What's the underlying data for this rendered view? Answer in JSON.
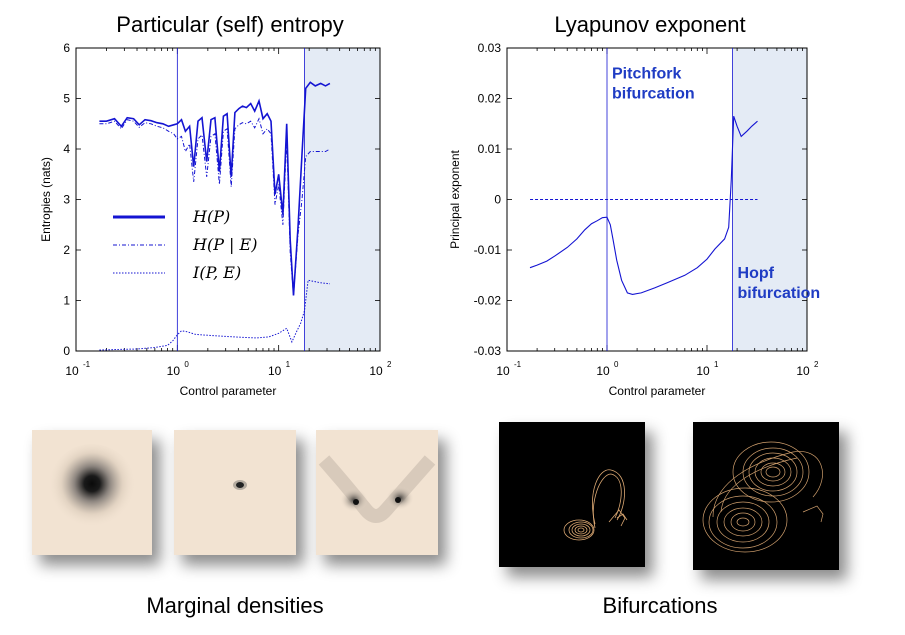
{
  "titles": {
    "left": "Particular (self) entropy",
    "right": "Lyapunov exponent",
    "bottom_left": "Marginal densities",
    "bottom_right": "Bifurcations"
  },
  "colors": {
    "series": "#1414d2",
    "shade": "#e4ebf5",
    "annotation": "#1f3cc4",
    "density_bg": "#f2e3d2",
    "attractor": "#e8b27a"
  },
  "chart_data": [
    {
      "type": "line",
      "title": "Particular (self) entropy",
      "xlabel": "Control parameter",
      "ylabel": "Entropies (nats)",
      "xscale": "log",
      "xlim": [
        0.1,
        100
      ],
      "ylim": [
        0,
        6
      ],
      "xtick_labels": [
        "10",
        "10",
        "10",
        "10"
      ],
      "xtick_exponents": [
        "-1",
        "0",
        "1",
        "2"
      ],
      "ytick_labels": [
        "0",
        "1",
        "2",
        "3",
        "4",
        "5",
        "6"
      ],
      "vlines": [
        1.0,
        18.0
      ],
      "shaded_region": [
        18.0,
        100
      ],
      "legend": "center-left",
      "series": [
        {
          "name": "H(P)",
          "style": "solid-thick",
          "x": [
            0.17,
            0.2,
            0.24,
            0.28,
            0.32,
            0.37,
            0.42,
            0.48,
            0.55,
            0.63,
            0.72,
            0.82,
            0.92,
            1.0,
            1.1,
            1.2,
            1.32,
            1.45,
            1.6,
            1.75,
            1.95,
            2.15,
            2.35,
            2.6,
            2.85,
            3.1,
            3.4,
            3.7,
            4.05,
            4.4,
            4.8,
            5.3,
            5.8,
            6.4,
            7.0,
            7.7,
            8.4,
            9.2,
            10.0,
            11.0,
            12.0,
            13.0,
            14.0,
            15.5,
            17.0,
            18.5,
            20.5,
            23.0,
            26.0,
            29.0,
            32.0
          ],
          "y": [
            4.55,
            4.55,
            4.6,
            4.45,
            4.62,
            4.6,
            4.48,
            4.58,
            4.56,
            4.52,
            4.5,
            4.45,
            4.48,
            4.5,
            4.58,
            4.35,
            4.45,
            3.65,
            4.55,
            4.62,
            3.75,
            4.58,
            4.62,
            3.55,
            4.65,
            4.7,
            3.45,
            4.72,
            4.8,
            4.85,
            4.82,
            4.9,
            4.75,
            4.95,
            4.6,
            4.7,
            4.55,
            3.1,
            3.5,
            2.7,
            4.5,
            2.2,
            1.1,
            2.45,
            3.9,
            5.2,
            5.32,
            5.25,
            5.3,
            5.25,
            5.3
          ]
        },
        {
          "name": "H(P | E)",
          "style": "dash-dot",
          "x": [
            0.17,
            0.2,
            0.24,
            0.28,
            0.32,
            0.37,
            0.42,
            0.48,
            0.55,
            0.63,
            0.72,
            0.82,
            0.92,
            1.0,
            1.1,
            1.2,
            1.32,
            1.45,
            1.6,
            1.75,
            1.95,
            2.15,
            2.35,
            2.6,
            2.85,
            3.1,
            3.4,
            3.7,
            4.05,
            4.4,
            4.8,
            5.3,
            5.8,
            6.4,
            7.0,
            7.7,
            8.4,
            9.2,
            10.0,
            11.0,
            12.0,
            13.0,
            14.0,
            15.5,
            17.0,
            18.5,
            20.5,
            23.0,
            26.0,
            29.0,
            32.0
          ],
          "y": [
            4.5,
            4.5,
            4.55,
            4.4,
            4.58,
            4.55,
            4.43,
            4.52,
            4.5,
            4.45,
            4.42,
            4.35,
            4.3,
            4.2,
            4.25,
            3.95,
            4.1,
            3.35,
            4.2,
            4.28,
            3.45,
            4.25,
            4.3,
            3.3,
            4.35,
            4.4,
            3.25,
            4.4,
            4.48,
            4.52,
            4.5,
            4.55,
            4.42,
            4.6,
            4.3,
            4.4,
            4.3,
            2.9,
            3.3,
            2.5,
            4.2,
            1.95,
            1.1,
            2.3,
            3.0,
            3.85,
            3.95,
            3.95,
            3.95,
            3.95,
            4.0
          ]
        },
        {
          "name": "I(P, E)",
          "style": "dotted",
          "x": [
            0.17,
            0.25,
            0.4,
            0.6,
            0.8,
            0.9,
            1.0,
            1.1,
            1.25,
            1.5,
            2.0,
            3.0,
            4.5,
            6.0,
            8.0,
            10.0,
            12.0,
            13.5,
            15.0,
            16.5,
            18.0,
            19.5,
            22.0,
            26.0,
            32.0
          ],
          "y": [
            0.02,
            0.03,
            0.04,
            0.07,
            0.11,
            0.2,
            0.32,
            0.4,
            0.38,
            0.33,
            0.31,
            0.29,
            0.27,
            0.26,
            0.28,
            0.35,
            0.45,
            0.18,
            0.38,
            0.55,
            0.8,
            1.4,
            1.38,
            1.35,
            1.33
          ]
        }
      ]
    },
    {
      "type": "line",
      "title": "Lyapunov exponent",
      "xlabel": "Control parameter",
      "ylabel": "Principal exponent",
      "xscale": "log",
      "xlim": [
        0.1,
        100
      ],
      "ylim": [
        -0.03,
        0.03
      ],
      "xtick_labels": [
        "10",
        "10",
        "10",
        "10"
      ],
      "xtick_exponents": [
        "-1",
        "0",
        "1",
        "2"
      ],
      "ytick_labels": [
        "0.03",
        "0.02",
        "0.01",
        "0",
        "-0.01",
        "-0.02",
        "-0.03"
      ],
      "vlines": [
        1.0,
        18.0
      ],
      "shaded_region": [
        18.0,
        100
      ],
      "hline": {
        "y": 0,
        "x": [
          0.17,
          32
        ]
      },
      "annotations": [
        {
          "text": [
            "Pitchfork",
            "bifurcation"
          ],
          "x": 1.0,
          "y": 0.024
        },
        {
          "text": [
            "Hopf",
            "bifurcation"
          ],
          "x": 18.0,
          "y": -0.0155
        }
      ],
      "series": [
        {
          "name": "",
          "style": "solid",
          "x": [
            0.17,
            0.2,
            0.25,
            0.3,
            0.4,
            0.5,
            0.6,
            0.7,
            0.8,
            0.9,
            1.0,
            1.08,
            1.15,
            1.25,
            1.4,
            1.6,
            1.8,
            2.2,
            3.0,
            4.0,
            6.0,
            8.0,
            10.0,
            12.0,
            15.0,
            16.5,
            17.5,
            18.5,
            20.0,
            22.0,
            25.0,
            28.0,
            32.0
          ],
          "y": [
            -0.0135,
            -0.013,
            -0.0122,
            -0.0112,
            -0.0095,
            -0.0078,
            -0.006,
            -0.0048,
            -0.0042,
            -0.0036,
            -0.0035,
            -0.005,
            -0.008,
            -0.012,
            -0.016,
            -0.0185,
            -0.0188,
            -0.0185,
            -0.0175,
            -0.0165,
            -0.015,
            -0.0135,
            -0.0118,
            -0.0098,
            -0.0078,
            -0.0055,
            0.004,
            0.0165,
            0.0145,
            0.0125,
            0.0135,
            0.0145,
            0.0155
          ]
        }
      ]
    }
  ]
}
